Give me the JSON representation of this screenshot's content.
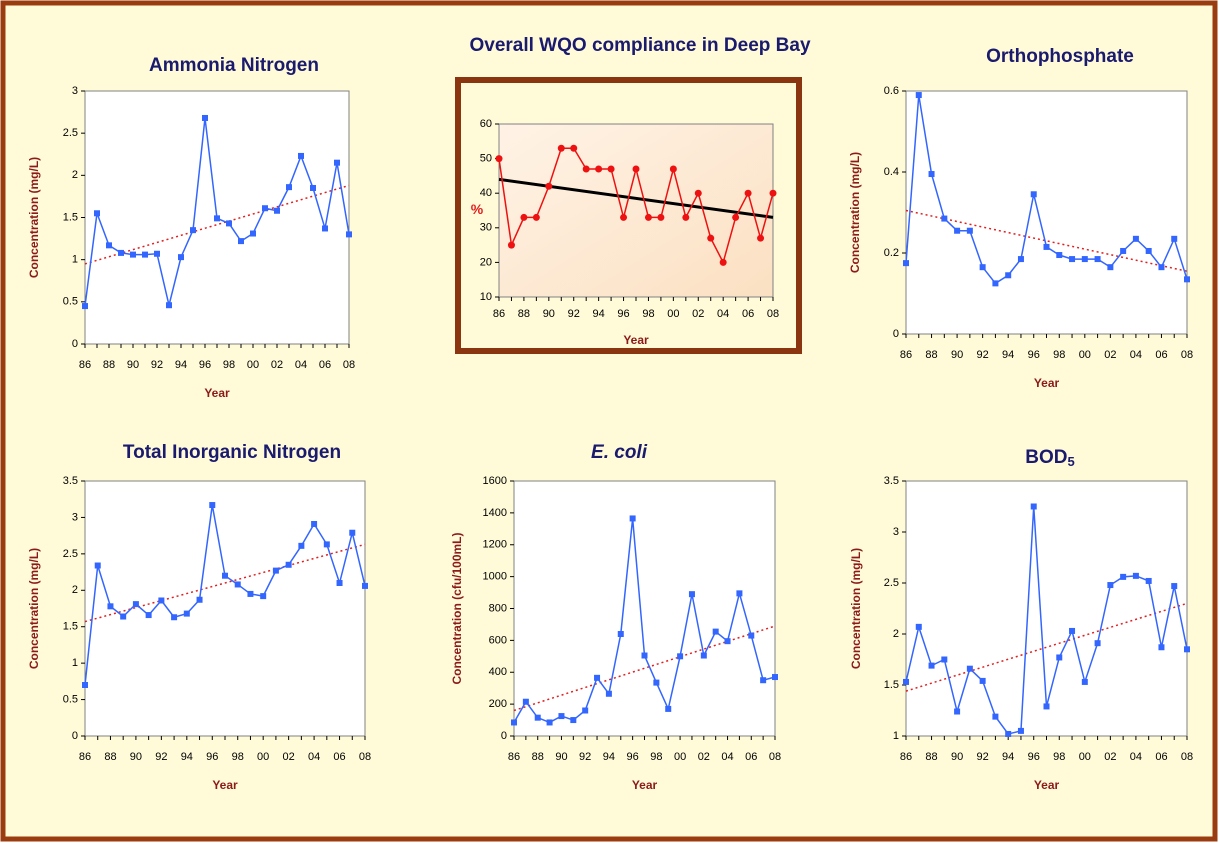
{
  "chart_data": [
    {
      "type": "line",
      "title": "Ammonia Nitrogen",
      "x_label": "Year",
      "y_label": "Concentration (mg/L)",
      "categories": [
        "86",
        null,
        "88",
        null,
        "90",
        null,
        "92",
        null,
        "94",
        null,
        "96",
        null,
        "98",
        null,
        "00",
        null,
        "02",
        null,
        "04",
        null,
        "06",
        null,
        "08"
      ],
      "series": [
        {
          "color": "#3366ff",
          "values": [
            0.45,
            1.55,
            1.17,
            1.08,
            1.06,
            1.06,
            1.07,
            0.46,
            1.03,
            1.35,
            2.68,
            1.49,
            1.43,
            1.22,
            1.31,
            1.61,
            1.58,
            1.86,
            2.23,
            1.85,
            1.37,
            2.15,
            1.3
          ]
        }
      ],
      "trendline": {
        "color": "#e02020",
        "dashed": true,
        "values": [
          0.95,
          1.88
        ]
      },
      "ylim": [
        0,
        3
      ],
      "yticks": [
        0,
        0.5,
        1,
        1.5,
        2,
        2.5,
        3
      ],
      "grid": false
    },
    {
      "type": "line",
      "title": "Overall WQO compliance in Deep Bay",
      "x_label": "Year",
      "y_label": "%",
      "categories": [
        "86",
        null,
        "88",
        null,
        "90",
        null,
        "92",
        null,
        "94",
        null,
        "96",
        null,
        "98",
        null,
        "00",
        null,
        "02",
        null,
        "04",
        null,
        "06",
        null,
        "08"
      ],
      "series": [
        {
          "color": "#ee1111",
          "values": [
            50,
            25,
            33,
            33,
            42,
            53,
            53,
            47,
            47,
            47,
            33,
            47,
            33,
            33,
            47,
            33,
            40,
            27,
            20,
            33,
            40,
            27,
            40
          ]
        }
      ],
      "trendline": {
        "color": "#000000",
        "dashed": false,
        "values": [
          44,
          33
        ]
      },
      "ylim": [
        10,
        60
      ],
      "yticks": [
        10,
        20,
        30,
        40,
        50,
        60
      ],
      "grid": false
    },
    {
      "type": "line",
      "title": "Orthophosphate",
      "x_label": "Year",
      "y_label": "Concentration (mg/L)",
      "categories": [
        "86",
        null,
        "88",
        null,
        "90",
        null,
        "92",
        null,
        "94",
        null,
        "96",
        null,
        "98",
        null,
        "00",
        null,
        "02",
        null,
        "04",
        null,
        "06",
        null,
        "08"
      ],
      "series": [
        {
          "color": "#3366ff",
          "values": [
            0.175,
            0.59,
            0.395,
            0.285,
            0.255,
            0.255,
            0.165,
            0.125,
            0.145,
            0.185,
            0.345,
            0.215,
            0.195,
            0.185,
            0.185,
            0.185,
            0.165,
            0.205,
            0.235,
            0.205,
            0.165,
            0.235,
            0.135
          ]
        }
      ],
      "trendline": {
        "color": "#e02020",
        "dashed": true,
        "values": [
          0.305,
          0.155
        ]
      },
      "ylim": [
        0,
        0.6
      ],
      "yticks": [
        0,
        0.2,
        0.4,
        0.6
      ],
      "grid": false
    },
    {
      "type": "line",
      "title": "Total Inorganic Nitrogen",
      "x_label": "Year",
      "y_label": "Concentration (mg/L)",
      "categories": [
        "86",
        null,
        "88",
        null,
        "90",
        null,
        "92",
        null,
        "94",
        null,
        "96",
        null,
        "98",
        null,
        "00",
        null,
        "02",
        null,
        "04",
        null,
        "06",
        null,
        "08"
      ],
      "series": [
        {
          "color": "#3366ff",
          "values": [
            0.7,
            2.34,
            1.78,
            1.64,
            1.81,
            1.66,
            1.86,
            1.63,
            1.68,
            1.87,
            3.17,
            2.2,
            2.08,
            1.95,
            1.92,
            2.27,
            2.35,
            2.61,
            2.91,
            2.63,
            2.1,
            2.79,
            2.06
          ]
        }
      ],
      "trendline": {
        "color": "#e02020",
        "dashed": true,
        "values": [
          1.57,
          2.63
        ]
      },
      "ylim": [
        0,
        3.5
      ],
      "yticks": [
        0,
        0.5,
        1,
        1.5,
        2,
        2.5,
        3,
        3.5
      ],
      "grid": false
    },
    {
      "type": "line",
      "title": "E. coli",
      "x_label": "Year",
      "y_label": "Concentration (cfu/100mL)",
      "categories": [
        "86",
        null,
        "88",
        null,
        "90",
        null,
        "92",
        null,
        "94",
        null,
        "96",
        null,
        "98",
        null,
        "00",
        null,
        "02",
        null,
        "04",
        null,
        "06",
        null,
        "08"
      ],
      "series": [
        {
          "color": "#3366ff",
          "values": [
            85,
            215,
            115,
            85,
            125,
            100,
            160,
            365,
            265,
            640,
            1365,
            505,
            335,
            170,
            500,
            890,
            505,
            655,
            595,
            895,
            630,
            350,
            370
          ]
        }
      ],
      "trendline": {
        "color": "#e02020",
        "dashed": true,
        "values": [
          160,
          690
        ]
      },
      "ylim": [
        0,
        1600
      ],
      "yticks": [
        0,
        200,
        400,
        600,
        800,
        1000,
        1200,
        1400,
        1600
      ],
      "grid": false
    },
    {
      "type": "line",
      "title": "BOD",
      "title_subscript": "5",
      "x_label": "Year",
      "y_label": "Concentration (mg/L)",
      "categories": [
        "86",
        null,
        "88",
        null,
        "90",
        null,
        "92",
        null,
        "94",
        null,
        "96",
        null,
        "98",
        null,
        "00",
        null,
        "02",
        null,
        "04",
        null,
        "06",
        null,
        "08"
      ],
      "series": [
        {
          "color": "#3366ff",
          "values": [
            1.53,
            2.07,
            1.69,
            1.75,
            1.24,
            1.66,
            1.54,
            1.19,
            1.02,
            1.05,
            3.25,
            1.29,
            1.77,
            2.03,
            1.53,
            1.91,
            2.48,
            2.56,
            2.57,
            2.52,
            1.87,
            2.47,
            1.85
          ]
        }
      ],
      "trendline": {
        "color": "#e02020",
        "dashed": true,
        "values": [
          1.44,
          2.3
        ]
      },
      "ylim": [
        1,
        3.5
      ],
      "yticks": [
        1,
        1.5,
        2,
        2.5,
        3,
        3.5
      ],
      "grid": false
    }
  ]
}
